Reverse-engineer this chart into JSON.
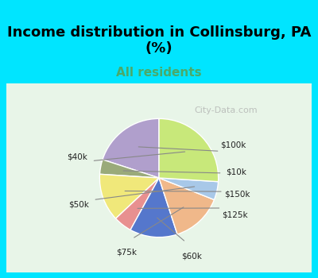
{
  "title": "Income distribution in Collinsburg, PA\n(%)",
  "subtitle": "All residents",
  "title_color": "#000000",
  "subtitle_color": "#4aaa6a",
  "background_top": "#00e5ff",
  "background_chart": "#e8f5e8",
  "labels": [
    "$100k",
    "$10k",
    "$150k",
    "$125k",
    "$60k",
    "$75k",
    "$50k",
    "$40k"
  ],
  "sizes": [
    20,
    4,
    13,
    5,
    13,
    14,
    5,
    26
  ],
  "colors": [
    "#b09fcc",
    "#9aaa7a",
    "#f0e87a",
    "#e89090",
    "#5577cc",
    "#f0b88a",
    "#a8c8e8",
    "#c8e87a"
  ],
  "startangle": 90,
  "watermark": "City-Data.com"
}
